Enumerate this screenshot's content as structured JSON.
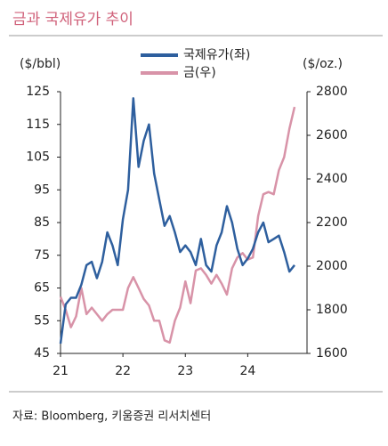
{
  "chart_data": {
    "type": "line",
    "title": "금과 국제유가 추이",
    "y_label": "($/bbl)",
    "y2_label": "($/oz.)",
    "source": "자료: Bloomberg, 키움증권 리서치센터",
    "xlim": [
      21,
      24.95
    ],
    "xticks": [
      21,
      22,
      23,
      24
    ],
    "ylim": [
      45,
      125
    ],
    "yticks": [
      45,
      55,
      65,
      75,
      85,
      95,
      105,
      115,
      125
    ],
    "y2lim": [
      1600,
      2800
    ],
    "y2ticks": [
      1600,
      1800,
      2000,
      2200,
      2400,
      2600,
      2800
    ],
    "x": [
      21.0,
      21.083,
      21.167,
      21.25,
      21.333,
      21.417,
      21.5,
      21.583,
      21.667,
      21.75,
      21.833,
      21.917,
      22.0,
      22.083,
      22.167,
      22.25,
      22.333,
      22.417,
      22.5,
      22.583,
      22.667,
      22.75,
      22.833,
      22.917,
      23.0,
      23.083,
      23.167,
      23.25,
      23.333,
      23.417,
      23.5,
      23.583,
      23.667,
      23.75,
      23.833,
      23.917,
      24.0,
      24.083,
      24.167,
      24.25,
      24.333,
      24.417,
      24.5,
      24.583,
      24.667,
      24.75
    ],
    "series": [
      {
        "name": "국제유가(좌)",
        "color": "#2e5f9e",
        "axis": "y",
        "values": [
          48,
          60,
          62,
          62,
          66,
          72,
          73,
          68,
          73,
          82,
          78,
          72,
          86,
          95,
          123,
          102,
          110,
          115,
          100,
          92,
          84,
          87,
          82,
          76,
          78,
          76,
          72,
          80,
          72,
          70,
          78,
          82,
          90,
          85,
          77,
          72,
          74,
          77,
          82,
          85,
          79,
          80,
          81,
          76,
          70,
          72
        ]
      },
      {
        "name": "금(우)",
        "color": "#d893a8",
        "axis": "y2",
        "values": [
          1860,
          1800,
          1720,
          1770,
          1900,
          1780,
          1810,
          1780,
          1750,
          1780,
          1800,
          1800,
          1800,
          1900,
          1950,
          1900,
          1850,
          1820,
          1750,
          1750,
          1660,
          1650,
          1750,
          1810,
          1930,
          1830,
          1980,
          1990,
          1960,
          1920,
          1960,
          1920,
          1870,
          1990,
          2040,
          2060,
          2030,
          2040,
          2230,
          2330,
          2340,
          2330,
          2440,
          2500,
          2630,
          2730
        ]
      }
    ]
  }
}
